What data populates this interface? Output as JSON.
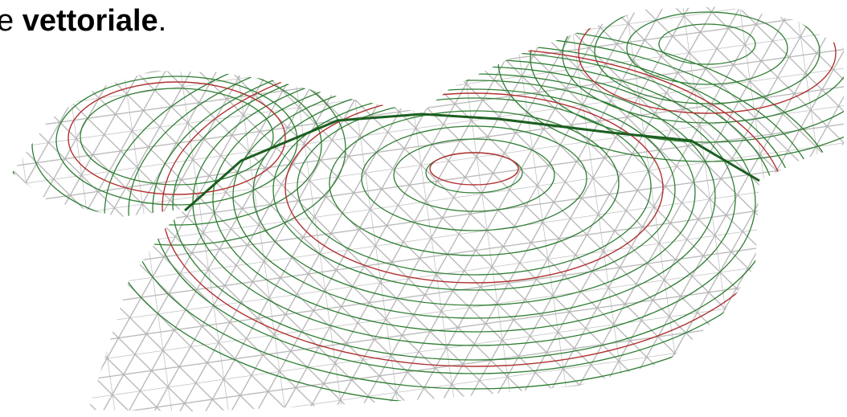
{
  "caption": {
    "lead": "e ",
    "bold": "vettoriale",
    "end": "."
  }
}
